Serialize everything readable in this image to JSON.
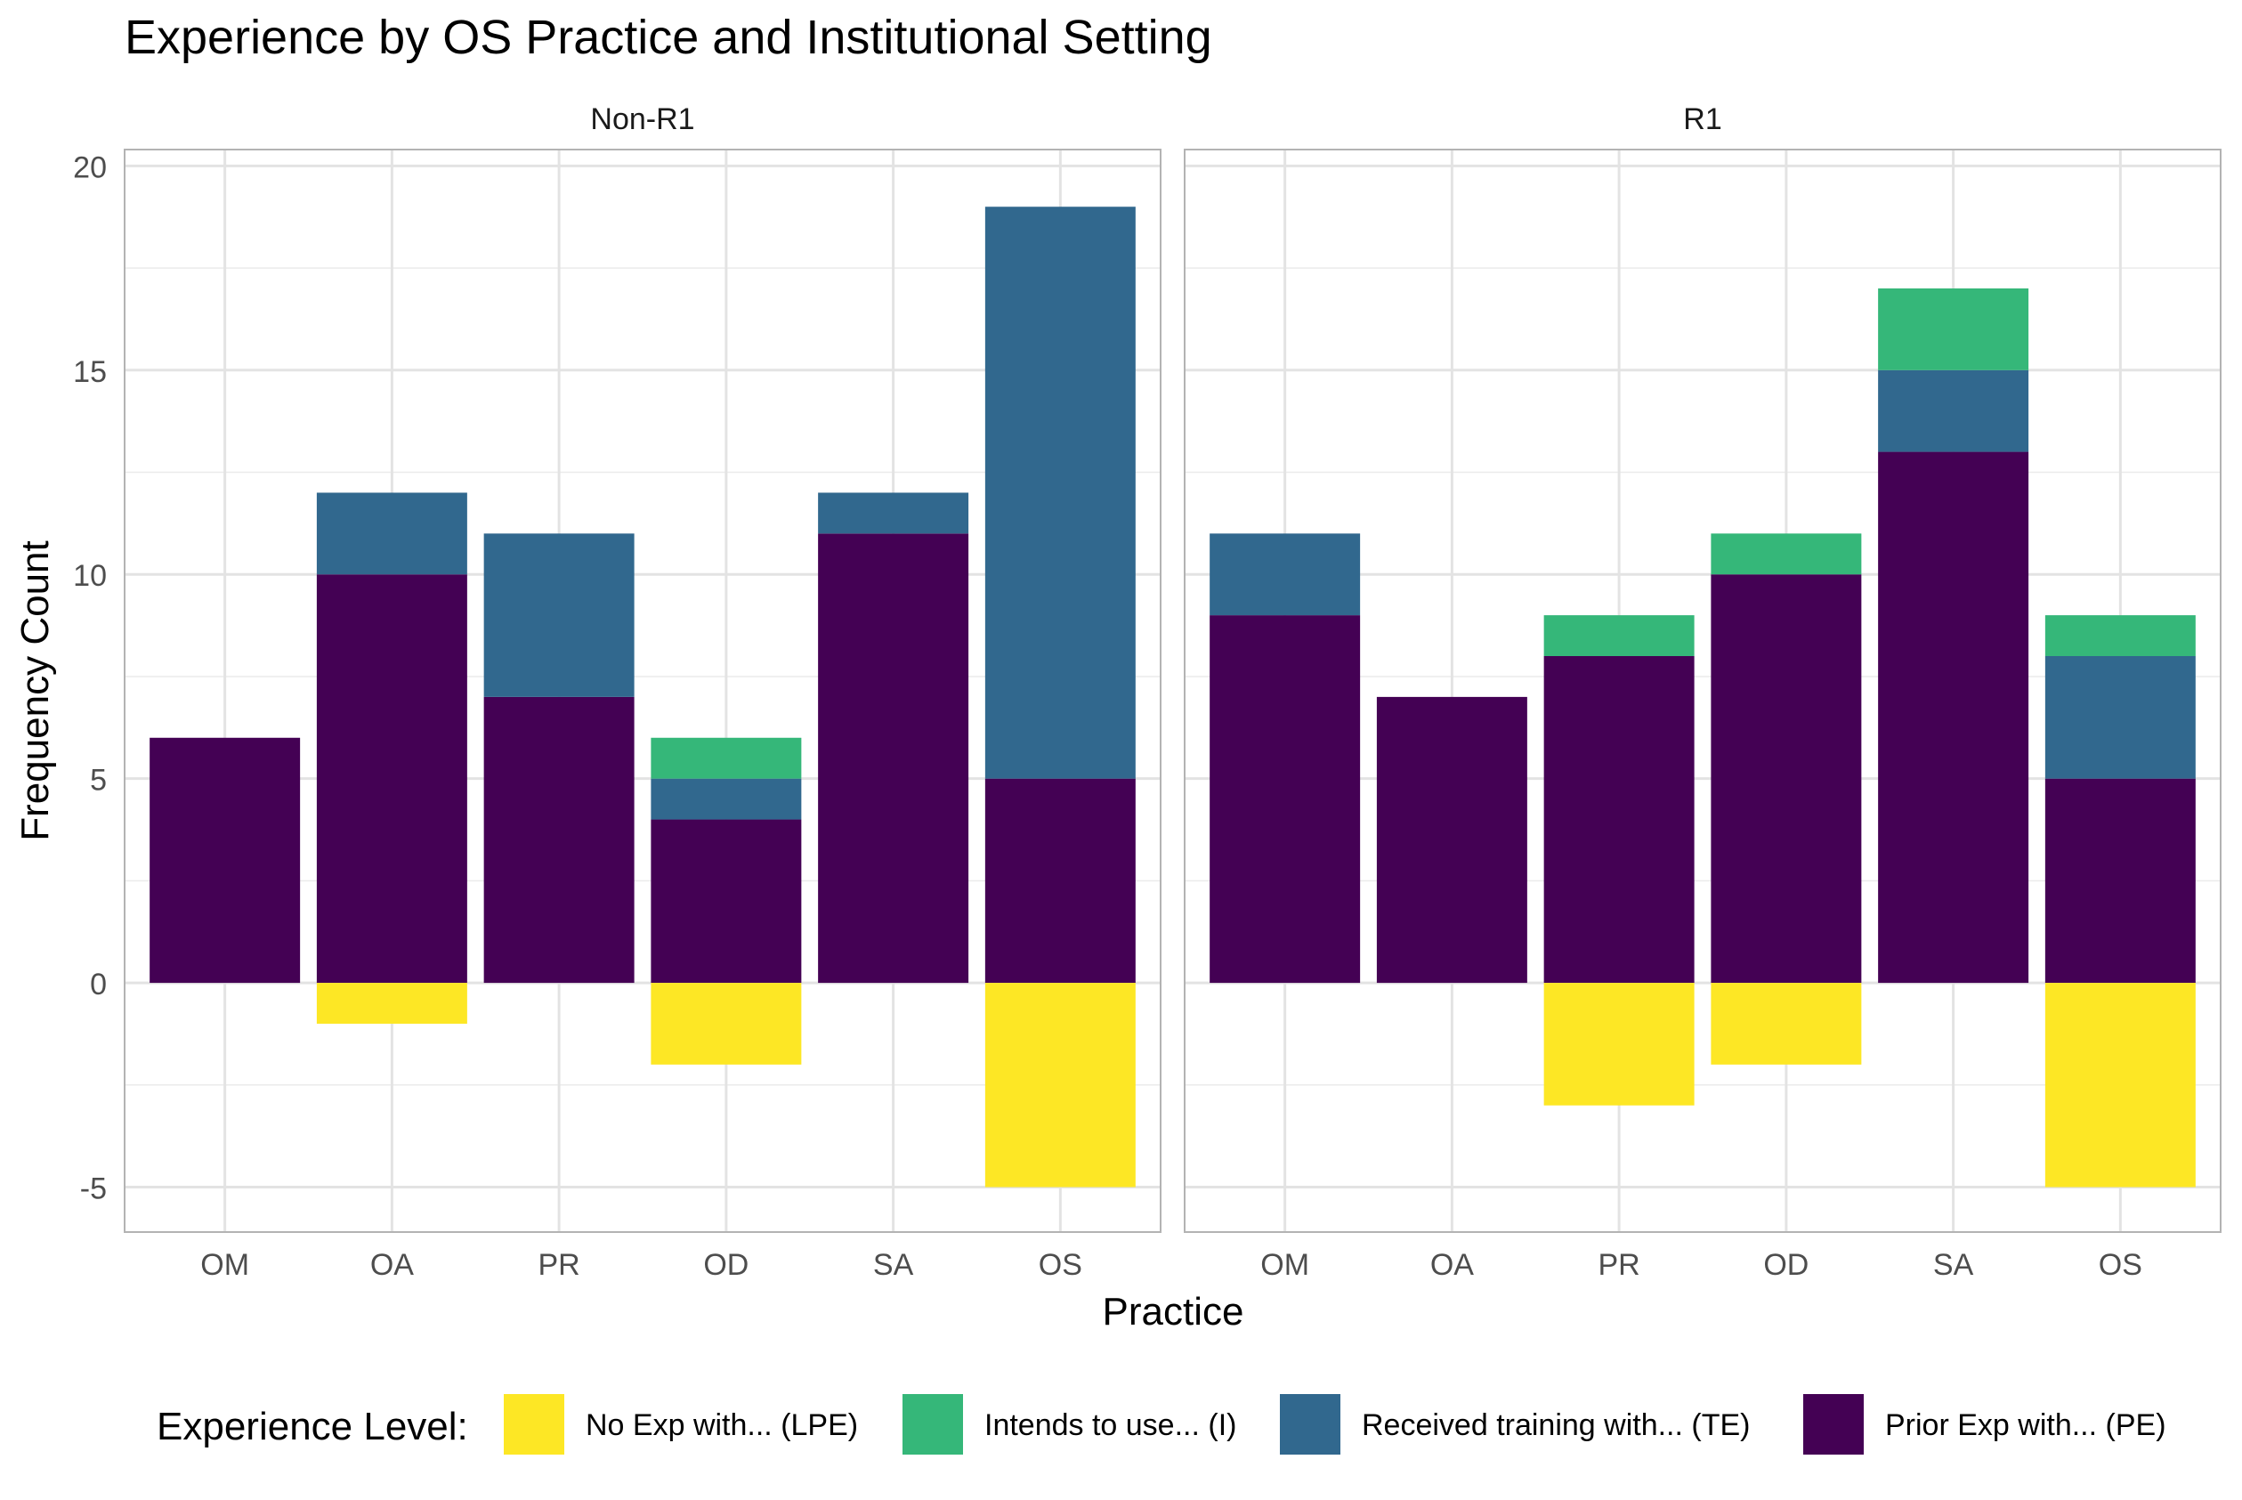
{
  "chart_data": {
    "type": "bar",
    "stacked": true,
    "title": "Experience by OS Practice and Institutional Setting",
    "xlabel": "Practice",
    "ylabel": "Frequency Count",
    "ylim": [
      -6.1,
      20.4
    ],
    "yticks": [
      -5,
      0,
      5,
      10,
      15,
      20
    ],
    "grid": true,
    "legend_position": "bottom",
    "legend_title": "Experience Level:",
    "categories": [
      "OM",
      "OA",
      "PR",
      "OD",
      "SA",
      "OS"
    ],
    "series": [
      {
        "key": "LPE",
        "name": "No Exp with... (LPE)",
        "color": "#FDE725"
      },
      {
        "key": "I",
        "name": "Intends to use... (I)",
        "color": "#35B779"
      },
      {
        "key": "TE",
        "name": "Received training with... (TE)",
        "color": "#31688E"
      },
      {
        "key": "PE",
        "name": "Prior Exp with... (PE)",
        "color": "#440154"
      }
    ],
    "panels": [
      {
        "label": "Non-R1",
        "values": {
          "PE": [
            6,
            10,
            7,
            4,
            11,
            5
          ],
          "TE": [
            0,
            2,
            4,
            1,
            1,
            14
          ],
          "I": [
            0,
            0,
            0,
            1,
            0,
            0
          ],
          "LPE": [
            0,
            -1,
            0,
            -2,
            0,
            -5
          ]
        }
      },
      {
        "label": "R1",
        "values": {
          "PE": [
            9,
            7,
            8,
            10,
            13,
            5
          ],
          "TE": [
            2,
            0,
            0,
            0,
            2,
            3
          ],
          "I": [
            0,
            0,
            1,
            1,
            2,
            1
          ],
          "LPE": [
            0,
            0,
            -3,
            -2,
            0,
            -5
          ]
        }
      }
    ]
  }
}
